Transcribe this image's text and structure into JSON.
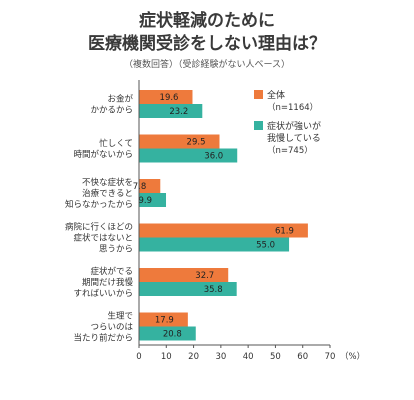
{
  "title_line1": "症状軽減のために",
  "title_line2": "医療機関受診をしない理由は？",
  "subtitle": "（複数回答）（受診経験がない人ベース）",
  "colors": {
    "orange": "#EE7A3C",
    "teal": "#35B2A0",
    "axis": "#555555",
    "text": "#333333"
  },
  "chart_data": {
    "type": "bar",
    "orientation": "horizontal",
    "categories": [
      [
        "お金が",
        "かかるから"
      ],
      [
        "忙しくて",
        "時間がないから"
      ],
      [
        "不快な症状を",
        "治療できると",
        "知らなかったから"
      ],
      [
        "病院に行くほどの",
        "症状ではないと",
        "思うから"
      ],
      [
        "症状がでる",
        "期間だけ我慢",
        "すればいいから"
      ],
      [
        "生理で",
        "つらいのは",
        "当たり前だから"
      ]
    ],
    "series": [
      {
        "name": "全体",
        "note": "（n=1164）",
        "values": [
          19.6,
          29.5,
          7.8,
          61.9,
          32.7,
          17.9
        ]
      },
      {
        "name": "症状が強いが我慢している",
        "name_lines": [
          "症状が強いが",
          "我慢している"
        ],
        "note": "（n=745）",
        "values": [
          23.2,
          36.0,
          9.9,
          55.0,
          35.8,
          20.8
        ]
      }
    ],
    "value_labels": [
      [
        "19.6",
        "29.5",
        "7.8",
        "61.9",
        "32.7",
        "17.9"
      ],
      [
        "23.2",
        "36.0",
        "9.9",
        "55.0",
        "35.8",
        "20.8"
      ]
    ],
    "xlim": [
      0,
      70
    ],
    "xticks": [
      0,
      10,
      20,
      30,
      40,
      50,
      60,
      70
    ],
    "unit": "（%）",
    "legend_position": "top-right"
  }
}
